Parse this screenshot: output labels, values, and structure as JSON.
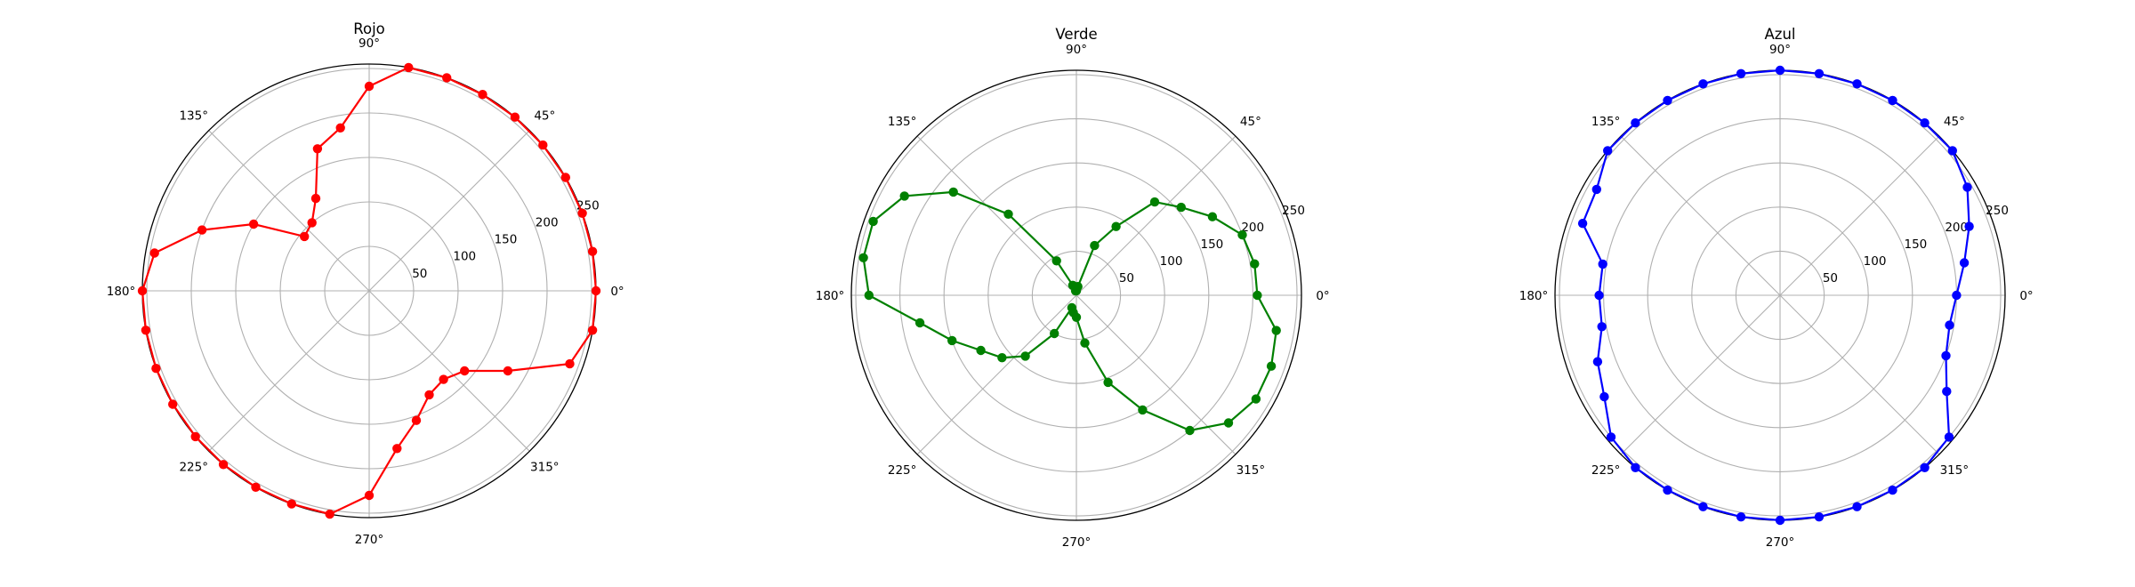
{
  "chart_data": [
    {
      "type": "line",
      "projection": "polar",
      "title": "Rojo",
      "color": "#ff0000",
      "rlim": [
        0,
        255
      ],
      "rticks": [
        50,
        100,
        150,
        200,
        250
      ],
      "rtick_labels": [
        "50",
        "100",
        "150",
        "200",
        "250"
      ],
      "theta_ticks": [
        0,
        45,
        90,
        135,
        180,
        225,
        270,
        315
      ],
      "theta_tick_labels": [
        "0°",
        "45°",
        "90°",
        "135°",
        "180°",
        "225°",
        "270°",
        "315°"
      ],
      "grid": true,
      "series": [
        {
          "theta": [
            0,
            10,
            20,
            30,
            40,
            50,
            60,
            70,
            80,
            90,
            100,
            110,
            120,
            130,
            140,
            150,
            160,
            170,
            180,
            190,
            200,
            210,
            220,
            230,
            240,
            250,
            260,
            270,
            280,
            290,
            300,
            310,
            320,
            330,
            340,
            350
          ],
          "r": [
            255,
            255,
            255,
            255,
            255,
            255,
            255,
            255,
            255,
            230,
            186,
            170,
            120,
            100,
            95,
            150,
            200,
            245,
            255,
            255,
            255,
            255,
            255,
            255,
            255,
            255,
            255,
            230,
            180,
            155,
            135,
            130,
            140,
            180,
            240,
            255
          ]
        }
      ]
    },
    {
      "type": "line",
      "projection": "polar",
      "title": "Verde",
      "color": "#008000",
      "rlim": [
        0,
        255
      ],
      "rticks": [
        50,
        100,
        150,
        200,
        250
      ],
      "rtick_labels": [
        "50",
        "100",
        "150",
        "200",
        "250"
      ],
      "theta_ticks": [
        0,
        45,
        90,
        135,
        180,
        225,
        270,
        315
      ],
      "theta_tick_labels": [
        "0°",
        "45°",
        "90°",
        "135°",
        "180°",
        "225°",
        "270°",
        "315°"
      ],
      "grid": true,
      "series": [
        {
          "theta": [
            0,
            10,
            20,
            30,
            40,
            50,
            60,
            70,
            80,
            90,
            100,
            110,
            120,
            130,
            140,
            150,
            160,
            170,
            180,
            190,
            200,
            210,
            220,
            230,
            240,
            250,
            260,
            270,
            280,
            290,
            300,
            310,
            320,
            330,
            340,
            350
          ],
          "r": [
            205,
            205,
            200,
            178,
            155,
            138,
            90,
            60,
            10,
            5,
            5,
            12,
            45,
            120,
            182,
            225,
            245,
            245,
            235,
            180,
            150,
            125,
            110,
            90,
            50,
            15,
            20,
            25,
            55,
            105,
            150,
            200,
            225,
            235,
            235,
            230
          ]
        }
      ]
    },
    {
      "type": "line",
      "projection": "polar",
      "title": "Azul",
      "color": "#0000ff",
      "rlim": [
        0,
        255
      ],
      "rticks": [
        50,
        100,
        150,
        200,
        250
      ],
      "rtick_labels": [
        "50",
        "100",
        "150",
        "200",
        "250"
      ],
      "theta_ticks": [
        0,
        45,
        90,
        135,
        180,
        225,
        270,
        315
      ],
      "theta_tick_labels": [
        "0°",
        "45°",
        "90°",
        "135°",
        "180°",
        "225°",
        "270°",
        "315°"
      ],
      "grid": true,
      "series": [
        {
          "theta": [
            0,
            10,
            20,
            30,
            40,
            50,
            60,
            70,
            80,
            90,
            100,
            110,
            120,
            130,
            140,
            150,
            160,
            170,
            180,
            190,
            200,
            210,
            220,
            230,
            240,
            250,
            260,
            270,
            280,
            290,
            300,
            310,
            320,
            330,
            340,
            350
          ],
          "r": [
            200,
            212,
            228,
            245,
            255,
            255,
            255,
            255,
            255,
            255,
            255,
            255,
            255,
            255,
            255,
            240,
            238,
            204,
            205,
            205,
            220,
            230,
            250,
            255,
            255,
            255,
            255,
            255,
            255,
            255,
            255,
            255,
            250,
            218,
            200,
            195
          ]
        }
      ]
    }
  ]
}
